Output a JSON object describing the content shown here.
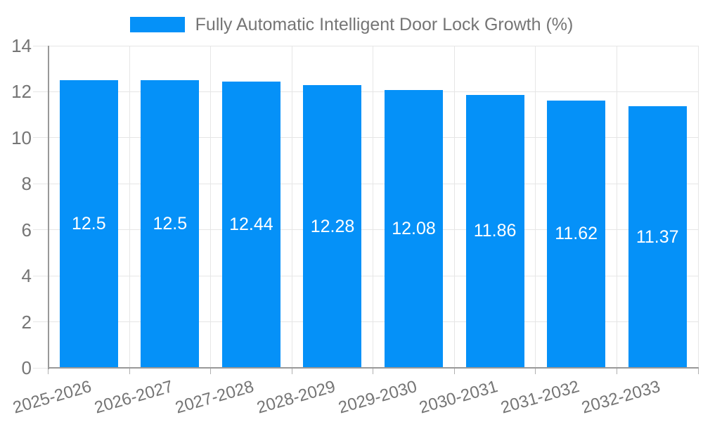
{
  "legend": {
    "label": "Fully Automatic Intelligent Door Lock Growth (%)",
    "swatch_color": "#0591F8",
    "position": "top-center"
  },
  "chart_data": {
    "type": "bar",
    "title": "Fully Automatic Intelligent Door Lock Growth (%)",
    "categories": [
      "2025-2026",
      "2026-2027",
      "2027-2028",
      "2028-2029",
      "2029-2030",
      "2030-2031",
      "2031-2032",
      "2032-2033"
    ],
    "series": [
      {
        "name": "Fully Automatic Intelligent Door Lock Growth (%)",
        "values": [
          12.5,
          12.5,
          12.44,
          12.28,
          12.08,
          11.86,
          11.62,
          11.37
        ],
        "value_labels": [
          "12.5",
          "12.5",
          "12.44",
          "12.28",
          "12.08",
          "11.86",
          "11.62",
          "11.37"
        ]
      }
    ],
    "xlabel": "",
    "ylabel": "",
    "ylim": [
      0,
      14
    ],
    "yticks": [
      0,
      2,
      4,
      6,
      8,
      10,
      12,
      14
    ],
    "ytick_labels": [
      "0",
      "2",
      "4",
      "6",
      "8",
      "10",
      "12",
      "14"
    ],
    "grid": true,
    "legend_position": "top",
    "colors": {
      "bar": "#0591F8",
      "value_label_text": "#ffffff",
      "tick_label_text": "#757575",
      "legend_text": "#757575",
      "axis_line": "#999999",
      "gridline": "#e6e6e6",
      "tick_mark": "#b0b0b0",
      "background": "#ffffff"
    }
  }
}
